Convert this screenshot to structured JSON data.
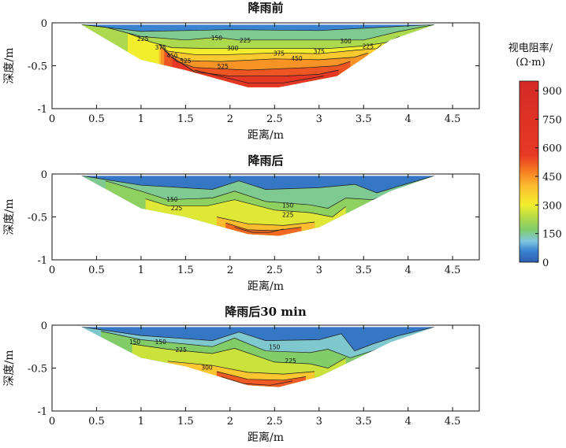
{
  "figure": {
    "colorbar": {
      "title_line1": "视电阻率/",
      "title_line2": "(Ω·m)",
      "ticks": [
        0,
        150,
        300,
        450,
        600,
        750,
        900
      ],
      "range": [
        0,
        950
      ],
      "stops": [
        {
          "v": 0,
          "c": "#2c5fae"
        },
        {
          "v": 60,
          "c": "#3a83cf"
        },
        {
          "v": 110,
          "c": "#7fc7e0"
        },
        {
          "v": 170,
          "c": "#7fcc6b"
        },
        {
          "v": 240,
          "c": "#b8dc45"
        },
        {
          "v": 300,
          "c": "#f2ee2e"
        },
        {
          "v": 400,
          "c": "#fdbc2f"
        },
        {
          "v": 480,
          "c": "#f57a21"
        },
        {
          "v": 560,
          "c": "#e73a24"
        },
        {
          "v": 950,
          "c": "#d42a26"
        }
      ]
    }
  },
  "chart_data": [
    {
      "type": "heatmap",
      "title": "降雨前",
      "xlabel": "距离/m",
      "ylabel": "深度/m",
      "xlim": [
        0,
        4.8
      ],
      "ylim": [
        -1,
        0
      ],
      "xticks": [
        0,
        0.5,
        1,
        1.5,
        2,
        2.5,
        3,
        3.5,
        4,
        4.5
      ],
      "yticks": [
        0,
        -0.5,
        -1
      ],
      "section_boundary": [
        [
          0.33,
          -0.02
        ],
        [
          1.0,
          -0.43
        ],
        [
          1.5,
          -0.55
        ],
        [
          2.2,
          -0.75
        ],
        [
          2.55,
          -0.75
        ],
        [
          3.2,
          -0.62
        ],
        [
          3.8,
          -0.2
        ],
        [
          4.3,
          -0.02
        ]
      ],
      "layers": [
        {
          "value": 60,
          "bottom": [
            [
              0.33,
              -0.02
            ],
            [
              1.0,
              -0.1
            ],
            [
              2.0,
              -0.08
            ],
            [
              3.0,
              -0.09
            ],
            [
              4.3,
              -0.02
            ]
          ]
        },
        {
          "value": 150,
          "bottom": [
            [
              0.33,
              -0.02
            ],
            [
              0.6,
              -0.05
            ],
            [
              1.0,
              -0.16
            ],
            [
              1.5,
              -0.2
            ],
            [
              1.85,
              -0.17
            ],
            [
              2.1,
              -0.2
            ],
            [
              2.6,
              -0.2
            ],
            [
              3.1,
              -0.2
            ],
            [
              3.5,
              -0.2
            ],
            [
              3.9,
              -0.1
            ],
            [
              4.3,
              -0.02
            ]
          ]
        },
        {
          "value": 225,
          "bottom": [
            [
              0.85,
              -0.12
            ],
            [
              1.1,
              -0.22
            ],
            [
              1.35,
              -0.29
            ],
            [
              1.8,
              -0.3
            ],
            [
              2.2,
              -0.3
            ],
            [
              2.7,
              -0.3
            ],
            [
              3.1,
              -0.3
            ],
            [
              3.5,
              -0.27
            ],
            [
              3.75,
              -0.23
            ],
            [
              3.9,
              -0.16
            ]
          ]
        },
        {
          "value": 300,
          "bottom": [
            [
              1.2,
              -0.25
            ],
            [
              1.3,
              -0.33
            ],
            [
              1.6,
              -0.37
            ],
            [
              2.0,
              -0.37
            ],
            [
              2.5,
              -0.35
            ],
            [
              3.0,
              -0.36
            ],
            [
              3.4,
              -0.32
            ],
            [
              3.65,
              -0.3
            ],
            [
              3.7,
              -0.25
            ]
          ]
        },
        {
          "value": 375,
          "bottom": [
            [
              1.22,
              -0.28
            ],
            [
              1.33,
              -0.37
            ],
            [
              1.5,
              -0.44
            ],
            [
              1.9,
              -0.45
            ],
            [
              2.5,
              -0.42
            ],
            [
              3.0,
              -0.43
            ],
            [
              3.4,
              -0.4
            ],
            [
              3.55,
              -0.35
            ]
          ]
        },
        {
          "value": 450,
          "bottom": [
            [
              1.26,
              -0.32
            ],
            [
              1.4,
              -0.45
            ],
            [
              1.6,
              -0.52
            ],
            [
              2.2,
              -0.55
            ],
            [
              2.9,
              -0.52
            ],
            [
              3.2,
              -0.5
            ],
            [
              3.35,
              -0.45
            ]
          ]
        },
        {
          "value": 525,
          "bottom": [
            [
              1.35,
              -0.4
            ],
            [
              1.6,
              -0.57
            ],
            [
              2.0,
              -0.62
            ],
            [
              2.6,
              -0.62
            ],
            [
              3.0,
              -0.6
            ],
            [
              3.22,
              -0.55
            ]
          ]
        },
        {
          "value": 600,
          "bottom": [
            [
              1.6,
              -0.55
            ],
            [
              2.2,
              -0.7
            ],
            [
              2.6,
              -0.7
            ],
            [
              3.05,
              -0.62
            ]
          ]
        }
      ],
      "contour_labels": [
        {
          "text": "225",
          "x": 1.02,
          "y": -0.21
        },
        {
          "text": "150",
          "x": 1.85,
          "y": -0.2
        },
        {
          "text": "225",
          "x": 2.17,
          "y": -0.23
        },
        {
          "text": "300",
          "x": 2.03,
          "y": -0.32
        },
        {
          "text": "375",
          "x": 1.22,
          "y": -0.31
        },
        {
          "text": "450",
          "x": 1.35,
          "y": -0.41
        },
        {
          "text": "525",
          "x": 1.5,
          "y": -0.47
        },
        {
          "text": "525",
          "x": 1.92,
          "y": -0.53
        },
        {
          "text": "375",
          "x": 2.55,
          "y": -0.38
        },
        {
          "text": "450",
          "x": 2.75,
          "y": -0.44
        },
        {
          "text": "375",
          "x": 3.0,
          "y": -0.36
        },
        {
          "text": "300",
          "x": 3.3,
          "y": -0.24
        },
        {
          "text": "225",
          "x": 3.55,
          "y": -0.3
        }
      ]
    },
    {
      "type": "heatmap",
      "title": "降雨后",
      "xlabel": "距离/m",
      "ylabel": "深度/m",
      "xlim": [
        0,
        4.8
      ],
      "ylim": [
        -1,
        0
      ],
      "xticks": [
        0,
        0.5,
        1,
        1.5,
        2,
        2.5,
        3,
        3.5,
        4,
        4.5
      ],
      "yticks": [
        0,
        -0.5,
        -1
      ],
      "section_boundary": [
        [
          0.33,
          -0.02
        ],
        [
          1.0,
          -0.4
        ],
        [
          1.5,
          -0.5
        ],
        [
          2.2,
          -0.7
        ],
        [
          2.55,
          -0.72
        ],
        [
          3.0,
          -0.62
        ],
        [
          3.8,
          -0.2
        ],
        [
          4.3,
          -0.02
        ]
      ],
      "layers": [
        {
          "value": 40,
          "bottom": [
            [
              0.33,
              -0.02
            ],
            [
              1.0,
              -0.13
            ],
            [
              1.8,
              -0.18
            ],
            [
              2.1,
              -0.08
            ],
            [
              2.4,
              -0.18
            ],
            [
              3.0,
              -0.16
            ],
            [
              3.4,
              -0.12
            ],
            [
              3.65,
              -0.22
            ],
            [
              3.9,
              -0.14
            ],
            [
              4.3,
              -0.02
            ]
          ]
        },
        {
          "value": 150,
          "bottom": [
            [
              0.6,
              -0.08
            ],
            [
              1.0,
              -0.2
            ],
            [
              1.3,
              -0.3
            ],
            [
              1.8,
              -0.28
            ],
            [
              2.05,
              -0.2
            ],
            [
              2.4,
              -0.32
            ],
            [
              2.9,
              -0.36
            ],
            [
              3.1,
              -0.4
            ],
            [
              3.3,
              -0.28
            ],
            [
              3.6,
              -0.3
            ],
            [
              3.95,
              -0.16
            ]
          ]
        },
        {
          "value": 190,
          "bottom": [
            [
              1.05,
              -0.29
            ],
            [
              1.3,
              -0.37
            ],
            [
              1.75,
              -0.37
            ],
            [
              2.05,
              -0.3
            ],
            [
              2.5,
              -0.42
            ],
            [
              2.9,
              -0.45
            ],
            [
              3.15,
              -0.5
            ],
            [
              3.3,
              -0.38
            ]
          ]
        },
        {
          "value": 280,
          "bottom": [
            [
              1.85,
              -0.5
            ],
            [
              2.2,
              -0.58
            ],
            [
              2.6,
              -0.6
            ],
            [
              2.95,
              -0.56
            ]
          ]
        },
        {
          "value": 400,
          "bottom": [
            [
              1.95,
              -0.57
            ],
            [
              2.2,
              -0.65
            ],
            [
              2.5,
              -0.66
            ],
            [
              2.8,
              -0.62
            ]
          ]
        },
        {
          "value": 500,
          "bottom": [
            [
              2.05,
              -0.62
            ],
            [
              2.25,
              -0.68
            ],
            [
              2.45,
              -0.68
            ],
            [
              2.6,
              -0.64
            ]
          ]
        }
      ],
      "contour_labels": [
        {
          "text": "150",
          "x": 1.35,
          "y": -0.32
        },
        {
          "text": "225",
          "x": 1.4,
          "y": -0.42
        },
        {
          "text": "150",
          "x": 2.65,
          "y": -0.39
        },
        {
          "text": "225",
          "x": 2.65,
          "y": -0.5
        }
      ]
    },
    {
      "type": "heatmap",
      "title": "降雨后30 min",
      "xlabel": "距离/m",
      "ylabel": "深度/m",
      "xlim": [
        0,
        4.8
      ],
      "ylim": [
        -1,
        0
      ],
      "xticks": [
        0,
        0.5,
        1,
        1.5,
        2,
        2.5,
        3,
        3.5,
        4,
        4.5
      ],
      "yticks": [
        0,
        -0.5,
        -1
      ],
      "section_boundary": [
        [
          0.33,
          -0.02
        ],
        [
          1.0,
          -0.38
        ],
        [
          1.5,
          -0.48
        ],
        [
          2.2,
          -0.7
        ],
        [
          2.55,
          -0.72
        ],
        [
          3.0,
          -0.6
        ],
        [
          3.8,
          -0.2
        ],
        [
          4.3,
          -0.02
        ]
      ],
      "layers": [
        {
          "value": 40,
          "bottom": [
            [
              0.33,
              -0.02
            ],
            [
              1.0,
              -0.12
            ],
            [
              1.8,
              -0.18
            ],
            [
              2.1,
              -0.08
            ],
            [
              2.4,
              -0.18
            ],
            [
              3.0,
              -0.17
            ],
            [
              3.25,
              -0.1
            ],
            [
              3.4,
              -0.3
            ],
            [
              3.6,
              -0.22
            ],
            [
              3.9,
              -0.12
            ],
            [
              4.3,
              -0.02
            ]
          ]
        },
        {
          "value": 120,
          "bottom": [
            [
              0.55,
              -0.07
            ],
            [
              1.0,
              -0.17
            ],
            [
              1.3,
              -0.2
            ],
            [
              1.8,
              -0.25
            ],
            [
              2.05,
              -0.15
            ],
            [
              2.4,
              -0.3
            ],
            [
              2.9,
              -0.32
            ],
            [
              3.1,
              -0.28
            ],
            [
              3.35,
              -0.38
            ],
            [
              3.6,
              -0.3
            ],
            [
              3.95,
              -0.15
            ]
          ]
        },
        {
          "value": 175,
          "bottom": [
            [
              0.9,
              -0.22
            ],
            [
              1.3,
              -0.28
            ],
            [
              1.8,
              -0.33
            ],
            [
              2.05,
              -0.27
            ],
            [
              2.5,
              -0.43
            ],
            [
              2.9,
              -0.45
            ],
            [
              3.1,
              -0.5
            ],
            [
              3.3,
              -0.38
            ]
          ]
        },
        {
          "value": 260,
          "bottom": [
            [
              1.3,
              -0.42
            ],
            [
              1.8,
              -0.47
            ],
            [
              2.2,
              -0.55
            ],
            [
              2.6,
              -0.57
            ],
            [
              2.95,
              -0.54
            ]
          ]
        },
        {
          "value": 380,
          "bottom": [
            [
              1.85,
              -0.54
            ],
            [
              2.2,
              -0.63
            ],
            [
              2.6,
              -0.64
            ],
            [
              2.85,
              -0.6
            ]
          ]
        },
        {
          "value": 520,
          "bottom": [
            [
              1.9,
              -0.6
            ],
            [
              2.15,
              -0.68
            ],
            [
              2.45,
              -0.7
            ],
            [
              2.7,
              -0.65
            ]
          ]
        }
      ],
      "contour_labels": [
        {
          "text": "150",
          "x": 0.93,
          "y": -0.22
        },
        {
          "text": "150",
          "x": 1.22,
          "y": -0.22
        },
        {
          "text": "225",
          "x": 1.45,
          "y": -0.31
        },
        {
          "text": "150",
          "x": 2.5,
          "y": -0.28
        },
        {
          "text": "225",
          "x": 2.68,
          "y": -0.44
        },
        {
          "text": "300",
          "x": 1.74,
          "y": -0.52
        }
      ]
    }
  ]
}
